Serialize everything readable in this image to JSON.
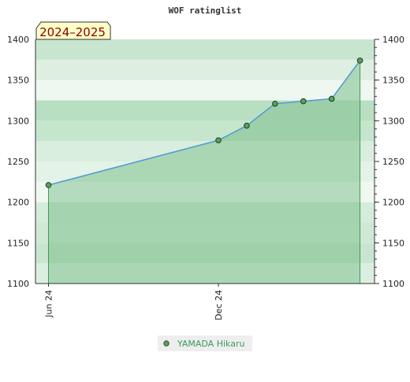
{
  "chart_data": {
    "type": "area",
    "title": "WOF ratinglist",
    "season_label": "2024–2025",
    "ylim": [
      1100,
      1400
    ],
    "y_ticks": [
      1100,
      1150,
      1200,
      1250,
      1300,
      1350,
      1400
    ],
    "y_tick_labels": [
      "1100",
      "1150",
      "1200",
      "1250",
      "1300",
      "1350",
      "1400"
    ],
    "x_ticks": [
      {
        "label": "Jun 24",
        "date": "2024-06"
      },
      {
        "label": "Dec 24",
        "date": "2024-12"
      }
    ],
    "series": [
      {
        "name": "YAMADA Hikaru",
        "points": [
          {
            "date": "2024-06",
            "rating": 1221
          },
          {
            "date": "2024-12",
            "rating": 1276
          },
          {
            "date": "2025-01",
            "rating": 1294
          },
          {
            "date": "2025-02",
            "rating": 1321
          },
          {
            "date": "2025-03",
            "rating": 1324
          },
          {
            "date": "2025-04",
            "rating": 1327
          },
          {
            "date": "2025-05",
            "rating": 1374
          }
        ]
      }
    ],
    "grid": true,
    "legend": "bottom-center",
    "colors": {
      "area_fill": "#7cc08c",
      "line": "#4f9ad6",
      "marker": "#5aa05a",
      "band_dark": "#93cfa3",
      "band_light": "#e2f2e6"
    }
  }
}
